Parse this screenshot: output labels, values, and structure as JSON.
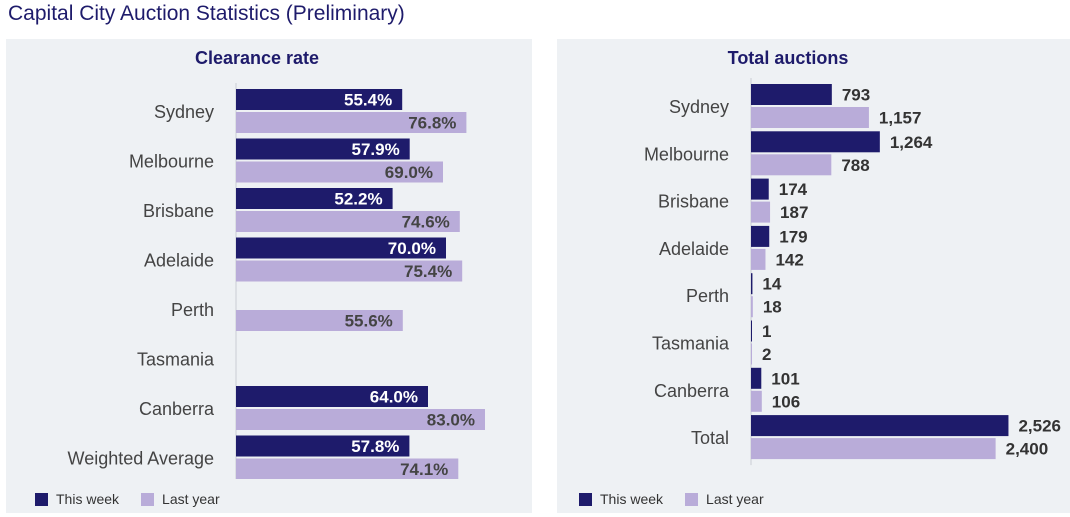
{
  "title": "Capital City Auction Statistics (Preliminary)",
  "colors": {
    "this_week": "#1e1b6b",
    "last_year": "#b9acd9",
    "panel_bg": "#eef1f4",
    "title": "#1e1b6b"
  },
  "legend": {
    "this_week": "This week",
    "last_year": "Last year"
  },
  "chart_data": [
    {
      "type": "bar",
      "orientation": "horizontal",
      "title": "Clearance rate",
      "unit": "%",
      "categories": [
        "Sydney",
        "Melbourne",
        "Brisbane",
        "Adelaide",
        "Perth",
        "Tasmania",
        "Canberra",
        "Weighted Average"
      ],
      "series": [
        {
          "name": "This week",
          "values": [
            55.4,
            57.9,
            52.2,
            70.0,
            null,
            null,
            64.0,
            57.8
          ],
          "labels": [
            "55.4%",
            "57.9%",
            "52.2%",
            "70.0%",
            null,
            null,
            "64.0%",
            "57.8%"
          ]
        },
        {
          "name": "Last year",
          "values": [
            76.8,
            69.0,
            74.6,
            75.4,
            55.6,
            null,
            83.0,
            74.1
          ],
          "labels": [
            "76.8%",
            "69.0%",
            "74.6%",
            "75.4%",
            "55.6%",
            null,
            "83.0%",
            "74.1%"
          ]
        }
      ],
      "xlim": [
        0,
        100
      ],
      "label_position": "inside-end"
    },
    {
      "type": "bar",
      "orientation": "horizontal",
      "title": "Total auctions",
      "categories": [
        "Sydney",
        "Melbourne",
        "Brisbane",
        "Adelaide",
        "Perth",
        "Tasmania",
        "Canberra",
        "Total"
      ],
      "series": [
        {
          "name": "This week",
          "values": [
            793,
            1264,
            174,
            179,
            14,
            1,
            101,
            2526
          ],
          "labels": [
            "793",
            "1,264",
            "174",
            "179",
            "14",
            "1",
            "101",
            "2,526"
          ]
        },
        {
          "name": "Last year",
          "values": [
            1157,
            788,
            187,
            142,
            18,
            2,
            106,
            2400
          ],
          "labels": [
            "1,157",
            "788",
            "187",
            "142",
            "18",
            "2",
            "106",
            "2,400"
          ]
        }
      ],
      "xlim": [
        0,
        2600
      ],
      "label_position": "outside-end"
    }
  ]
}
